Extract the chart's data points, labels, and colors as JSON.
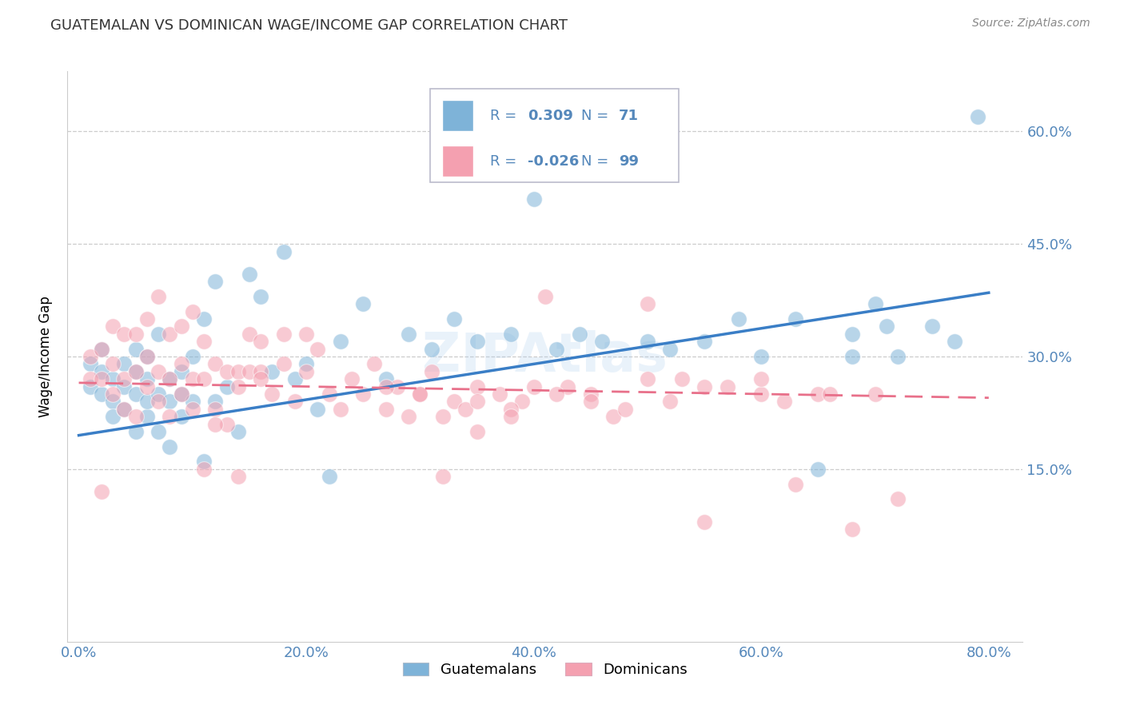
{
  "title": "GUATEMALAN VS DOMINICAN WAGE/INCOME GAP CORRELATION CHART",
  "source": "Source: ZipAtlas.com",
  "xlabel_ticks": [
    "0.0%",
    "20.0%",
    "40.0%",
    "60.0%",
    "80.0%"
  ],
  "ylabel_ticks": [
    "15.0%",
    "30.0%",
    "45.0%",
    "60.0%"
  ],
  "xlabel_values": [
    0.0,
    0.2,
    0.4,
    0.6,
    0.8
  ],
  "ylabel_values": [
    0.15,
    0.3,
    0.45,
    0.6
  ],
  "xlim": [
    -0.01,
    0.83
  ],
  "ylim": [
    -0.08,
    0.68
  ],
  "ylabel": "Wage/Income Gap",
  "blue_R": "0.309",
  "blue_N": "71",
  "pink_R": "-0.026",
  "pink_N": "99",
  "blue_color": "#7EB3D8",
  "pink_color": "#F4A0B0",
  "blue_line_color": "#3A7EC6",
  "pink_line_color": "#E8708A",
  "axis_color": "#5588BB",
  "grid_color": "#CCCCCC",
  "legend_text_color": "#5588BB",
  "blue_scatter_x": [
    0.01,
    0.01,
    0.02,
    0.02,
    0.02,
    0.03,
    0.03,
    0.03,
    0.04,
    0.04,
    0.04,
    0.05,
    0.05,
    0.05,
    0.05,
    0.06,
    0.06,
    0.06,
    0.06,
    0.07,
    0.07,
    0.07,
    0.08,
    0.08,
    0.08,
    0.09,
    0.09,
    0.09,
    0.1,
    0.1,
    0.11,
    0.11,
    0.12,
    0.12,
    0.13,
    0.14,
    0.15,
    0.16,
    0.17,
    0.18,
    0.19,
    0.2,
    0.21,
    0.22,
    0.23,
    0.25,
    0.27,
    0.29,
    0.31,
    0.33,
    0.35,
    0.38,
    0.4,
    0.42,
    0.44,
    0.46,
    0.5,
    0.52,
    0.55,
    0.58,
    0.6,
    0.63,
    0.65,
    0.68,
    0.7,
    0.72,
    0.75,
    0.77,
    0.79,
    0.71,
    0.68
  ],
  "blue_scatter_y": [
    0.26,
    0.29,
    0.25,
    0.28,
    0.31,
    0.24,
    0.27,
    0.22,
    0.23,
    0.26,
    0.29,
    0.2,
    0.25,
    0.28,
    0.31,
    0.22,
    0.24,
    0.27,
    0.3,
    0.2,
    0.25,
    0.33,
    0.18,
    0.24,
    0.27,
    0.22,
    0.25,
    0.28,
    0.24,
    0.3,
    0.16,
    0.35,
    0.24,
    0.4,
    0.26,
    0.2,
    0.41,
    0.38,
    0.28,
    0.44,
    0.27,
    0.29,
    0.23,
    0.14,
    0.32,
    0.37,
    0.27,
    0.33,
    0.31,
    0.35,
    0.32,
    0.33,
    0.51,
    0.31,
    0.33,
    0.32,
    0.32,
    0.31,
    0.32,
    0.35,
    0.3,
    0.35,
    0.15,
    0.33,
    0.37,
    0.3,
    0.34,
    0.32,
    0.62,
    0.34,
    0.3
  ],
  "pink_scatter_x": [
    0.01,
    0.01,
    0.02,
    0.02,
    0.02,
    0.03,
    0.03,
    0.03,
    0.04,
    0.04,
    0.04,
    0.05,
    0.05,
    0.05,
    0.06,
    0.06,
    0.06,
    0.07,
    0.07,
    0.07,
    0.08,
    0.08,
    0.08,
    0.09,
    0.09,
    0.09,
    0.1,
    0.1,
    0.1,
    0.11,
    0.11,
    0.11,
    0.12,
    0.12,
    0.13,
    0.13,
    0.14,
    0.14,
    0.15,
    0.15,
    0.16,
    0.16,
    0.17,
    0.18,
    0.18,
    0.19,
    0.2,
    0.2,
    0.21,
    0.22,
    0.23,
    0.24,
    0.25,
    0.26,
    0.27,
    0.28,
    0.29,
    0.3,
    0.31,
    0.32,
    0.33,
    0.34,
    0.35,
    0.37,
    0.39,
    0.41,
    0.43,
    0.45,
    0.47,
    0.5,
    0.52,
    0.55,
    0.57,
    0.6,
    0.62,
    0.65,
    0.45,
    0.5,
    0.12,
    0.14,
    0.16,
    0.38,
    0.4,
    0.42,
    0.48,
    0.53,
    0.55,
    0.27,
    0.32,
    0.35,
    0.38,
    0.3,
    0.35,
    0.6,
    0.63,
    0.66,
    0.68,
    0.7,
    0.72
  ],
  "pink_scatter_y": [
    0.27,
    0.3,
    0.12,
    0.27,
    0.31,
    0.25,
    0.29,
    0.34,
    0.23,
    0.27,
    0.33,
    0.22,
    0.28,
    0.33,
    0.26,
    0.3,
    0.35,
    0.24,
    0.28,
    0.38,
    0.22,
    0.27,
    0.33,
    0.25,
    0.29,
    0.34,
    0.23,
    0.27,
    0.36,
    0.15,
    0.27,
    0.32,
    0.23,
    0.29,
    0.21,
    0.28,
    0.14,
    0.28,
    0.33,
    0.28,
    0.28,
    0.32,
    0.25,
    0.29,
    0.33,
    0.24,
    0.28,
    0.33,
    0.31,
    0.25,
    0.23,
    0.27,
    0.25,
    0.29,
    0.23,
    0.26,
    0.22,
    0.25,
    0.28,
    0.22,
    0.24,
    0.23,
    0.2,
    0.25,
    0.24,
    0.38,
    0.26,
    0.25,
    0.22,
    0.27,
    0.24,
    0.26,
    0.26,
    0.25,
    0.24,
    0.25,
    0.24,
    0.37,
    0.21,
    0.26,
    0.27,
    0.23,
    0.26,
    0.25,
    0.23,
    0.27,
    0.08,
    0.26,
    0.14,
    0.26,
    0.22,
    0.25,
    0.24,
    0.27,
    0.13,
    0.25,
    0.07,
    0.25,
    0.11
  ]
}
